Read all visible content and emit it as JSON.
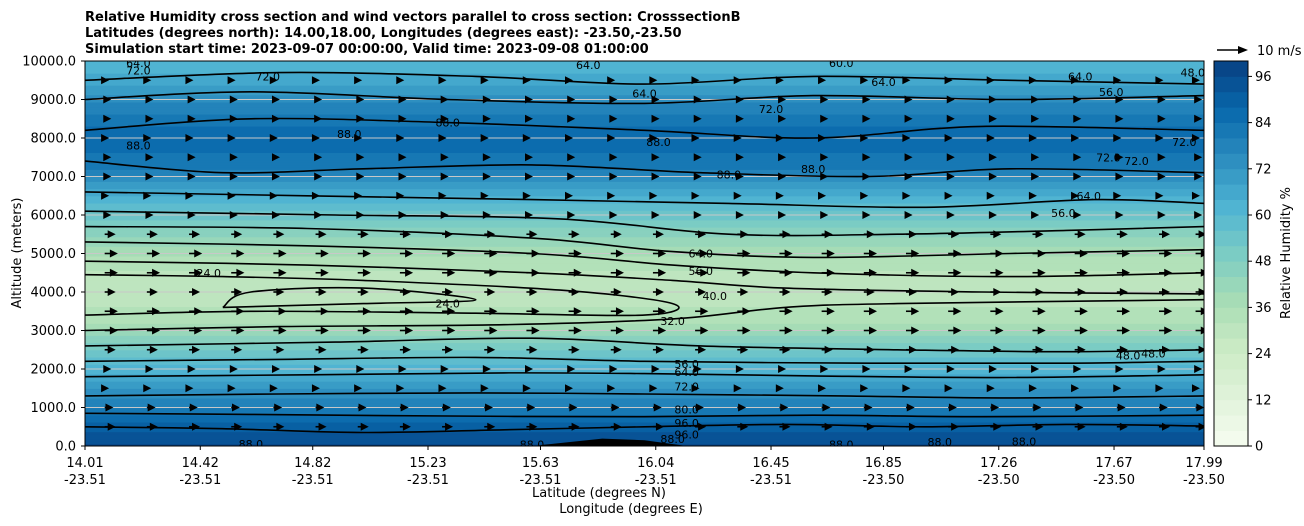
{
  "chart_data": {
    "type": "contour",
    "title_lines": [
      "Relative Humidity cross section and wind vectors parallel to cross section: CrosssectionB",
      "Latitudes (degrees north): 14.00,18.00, Longitudes (degrees east): -23.50,-23.50",
      "Simulation start time: 2023-09-07 00:00:00, Valid time: 2023-09-08 01:00:00"
    ],
    "ylabel": "Altitude (meters)",
    "xlabel_lat": "Latitude (degrees N)",
    "xlabel_lon": "Longitude (degrees E)",
    "x_range": [
      14.01,
      17.99
    ],
    "y_range": [
      0,
      10000
    ],
    "x_ticks": [
      {
        "value": 14.01,
        "lat": "14.01",
        "lon": "-23.51"
      },
      {
        "value": 14.42,
        "lat": "14.42",
        "lon": "-23.51"
      },
      {
        "value": 14.82,
        "lat": "14.82",
        "lon": "-23.51"
      },
      {
        "value": 15.23,
        "lat": "15.23",
        "lon": "-23.51"
      },
      {
        "value": 15.63,
        "lat": "15.63",
        "lon": "-23.51"
      },
      {
        "value": 16.04,
        "lat": "16.04",
        "lon": "-23.51"
      },
      {
        "value": 16.45,
        "lat": "16.45",
        "lon": "-23.51"
      },
      {
        "value": 16.85,
        "lat": "16.85",
        "lon": "-23.50"
      },
      {
        "value": 17.26,
        "lat": "17.26",
        "lon": "-23.50"
      },
      {
        "value": 17.67,
        "lat": "17.67",
        "lon": "-23.50"
      },
      {
        "value": 17.99,
        "lat": "17.99",
        "lon": "-23.50"
      }
    ],
    "y_ticks": [
      {
        "value": 0,
        "label": "0.0"
      },
      {
        "value": 1000,
        "label": "1000.0"
      },
      {
        "value": 2000,
        "label": "2000.0"
      },
      {
        "value": 3000,
        "label": "3000.0"
      },
      {
        "value": 4000,
        "label": "4000.0"
      },
      {
        "value": 5000,
        "label": "5000.0"
      },
      {
        "value": 6000,
        "label": "6000.0"
      },
      {
        "value": 7000,
        "label": "7000.0"
      },
      {
        "value": 8000,
        "label": "8000.0"
      },
      {
        "value": 9000,
        "label": "9000.0"
      },
      {
        "value": 10000,
        "label": "10000.0"
      }
    ],
    "horizontal_grid": true,
    "colorbar": {
      "label": "Relative Humidity %",
      "min": 0,
      "max": 100,
      "ticks": [
        0,
        12,
        24,
        36,
        48,
        60,
        72,
        84,
        96
      ],
      "levels": [
        0,
        4,
        8,
        12,
        16,
        20,
        24,
        28,
        32,
        36,
        40,
        44,
        48,
        52,
        56,
        60,
        64,
        68,
        72,
        76,
        80,
        84,
        88,
        92,
        96,
        100
      ]
    },
    "rh_bands": [
      {
        "alt": 0,
        "rh": 97
      },
      {
        "alt": 400,
        "rh": 92
      },
      {
        "alt": 900,
        "rh": 82
      },
      {
        "alt": 1500,
        "rh": 72
      },
      {
        "alt": 2000,
        "rh": 62
      },
      {
        "alt": 2600,
        "rh": 50
      },
      {
        "alt": 3200,
        "rh": 36
      },
      {
        "alt": 4000,
        "rh": 28
      },
      {
        "alt": 4800,
        "rh": 34
      },
      {
        "alt": 5600,
        "rh": 46
      },
      {
        "alt": 6400,
        "rh": 62
      },
      {
        "alt": 7200,
        "rh": 80
      },
      {
        "alt": 8000,
        "rh": 88
      },
      {
        "alt": 8800,
        "rh": 78
      },
      {
        "alt": 9500,
        "rh": 66
      },
      {
        "alt": 10000,
        "rh": 60
      }
    ],
    "contours": [
      {
        "level": 88,
        "points": [
          [
            14.01,
            500
          ],
          [
            14.5,
            450
          ],
          [
            15.0,
            350
          ],
          [
            15.5,
            420
          ],
          [
            16.0,
            500
          ],
          [
            16.5,
            560
          ],
          [
            17.0,
            500
          ],
          [
            17.5,
            560
          ],
          [
            17.99,
            520
          ]
        ]
      },
      {
        "level": 88,
        "points": [
          [
            14.01,
            850
          ],
          [
            14.6,
            820
          ],
          [
            15.3,
            780
          ],
          [
            16.0,
            760
          ],
          [
            16.6,
            800
          ],
          [
            17.2,
            760
          ],
          [
            17.99,
            800
          ]
        ]
      },
      {
        "level": 72,
        "points": [
          [
            14.01,
            1300
          ],
          [
            14.7,
            1350
          ],
          [
            15.4,
            1380
          ],
          [
            16.0,
            1350
          ],
          [
            16.7,
            1300
          ],
          [
            17.3,
            1250
          ],
          [
            17.99,
            1300
          ]
        ]
      },
      {
        "level": 64,
        "points": [
          [
            14.01,
            1800
          ],
          [
            14.8,
            1850
          ],
          [
            15.5,
            1900
          ],
          [
            16.0,
            1880
          ],
          [
            16.6,
            1820
          ],
          [
            17.3,
            1780
          ],
          [
            17.99,
            1850
          ]
        ]
      },
      {
        "level": 56,
        "points": [
          [
            14.01,
            2200
          ],
          [
            14.7,
            2250
          ],
          [
            15.4,
            2300
          ],
          [
            16.0,
            2200
          ],
          [
            16.8,
            2150
          ],
          [
            17.5,
            2150
          ],
          [
            17.99,
            2200
          ]
        ]
      },
      {
        "level": 48,
        "points": [
          [
            14.01,
            2600
          ],
          [
            14.9,
            2700
          ],
          [
            15.6,
            2800
          ],
          [
            16.2,
            2600
          ],
          [
            16.9,
            2500
          ],
          [
            17.5,
            2450
          ],
          [
            17.99,
            2500
          ]
        ]
      },
      {
        "level": 40,
        "points": [
          [
            14.01,
            3000
          ],
          [
            14.7,
            3100
          ],
          [
            15.5,
            3150
          ],
          [
            16.1,
            3300
          ],
          [
            16.5,
            3600
          ],
          [
            16.9,
            3700
          ],
          [
            17.99,
            3800
          ]
        ]
      },
      {
        "level": 32,
        "points": [
          [
            14.01,
            3400
          ],
          [
            14.6,
            3500
          ],
          [
            15.4,
            3450
          ],
          [
            16.0,
            3400
          ],
          [
            16.1,
            3700
          ],
          [
            15.7,
            4050
          ],
          [
            15.0,
            4300
          ],
          [
            14.5,
            4400
          ],
          [
            14.01,
            4450
          ]
        ]
      },
      {
        "level": 24,
        "points": [
          [
            14.5,
            3600
          ],
          [
            15.0,
            3700
          ],
          [
            15.4,
            3800
          ],
          [
            15.0,
            4100
          ],
          [
            14.6,
            4000
          ],
          [
            14.5,
            3600
          ]
        ]
      },
      {
        "level": 40,
        "points": [
          [
            14.01,
            4800
          ],
          [
            14.8,
            4700
          ],
          [
            15.6,
            4500
          ],
          [
            16.1,
            4300
          ],
          [
            16.5,
            4100
          ],
          [
            17.2,
            4000
          ],
          [
            17.99,
            3950
          ]
        ]
      },
      {
        "level": 56,
        "points": [
          [
            14.01,
            5300
          ],
          [
            14.8,
            5200
          ],
          [
            15.6,
            5000
          ],
          [
            16.1,
            4700
          ],
          [
            16.6,
            4500
          ],
          [
            17.3,
            4400
          ],
          [
            17.99,
            4500
          ]
        ]
      },
      {
        "level": 64,
        "points": [
          [
            14.01,
            5700
          ],
          [
            14.8,
            5650
          ],
          [
            15.6,
            5400
          ],
          [
            16.1,
            5050
          ],
          [
            16.6,
            4900
          ],
          [
            17.3,
            5000
          ],
          [
            17.99,
            5100
          ]
        ]
      },
      {
        "level": 72,
        "points": [
          [
            14.01,
            6100
          ],
          [
            14.9,
            6000
          ],
          [
            15.7,
            5900
          ],
          [
            16.3,
            5500
          ],
          [
            16.9,
            5500
          ],
          [
            17.5,
            5600
          ],
          [
            17.99,
            5700
          ]
        ]
      },
      {
        "level": 80,
        "points": [
          [
            14.01,
            6600
          ],
          [
            14.8,
            6500
          ],
          [
            15.6,
            6400
          ],
          [
            16.3,
            6300
          ],
          [
            17.0,
            6200
          ],
          [
            17.6,
            6400
          ],
          [
            17.99,
            6300
          ]
        ]
      },
      {
        "level": 88,
        "points": [
          [
            14.01,
            7400
          ],
          [
            14.5,
            7100
          ],
          [
            15.0,
            7200
          ],
          [
            15.6,
            7300
          ],
          [
            16.2,
            7100
          ],
          [
            16.8,
            7000
          ],
          [
            17.3,
            7200
          ],
          [
            17.99,
            7100
          ]
        ]
      },
      {
        "level": 88,
        "points": [
          [
            14.01,
            8200
          ],
          [
            14.6,
            8500
          ],
          [
            15.3,
            8400
          ],
          [
            16.0,
            8200
          ],
          [
            16.6,
            8000
          ],
          [
            17.2,
            8300
          ],
          [
            17.99,
            8200
          ]
        ]
      },
      {
        "level": 72,
        "points": [
          [
            14.01,
            9000
          ],
          [
            14.6,
            9200
          ],
          [
            15.3,
            9000
          ],
          [
            16.0,
            8900
          ],
          [
            16.6,
            9100
          ],
          [
            17.3,
            9000
          ],
          [
            17.99,
            9100
          ]
        ]
      },
      {
        "level": 64,
        "points": [
          [
            14.01,
            9500
          ],
          [
            14.7,
            9700
          ],
          [
            15.4,
            9600
          ],
          [
            16.0,
            9400
          ],
          [
            16.6,
            9600
          ],
          [
            17.3,
            9500
          ],
          [
            17.99,
            9400
          ]
        ]
      }
    ],
    "contour_labels": [
      {
        "text": "88.0",
        "x": 14.6,
        "y": 50
      },
      {
        "text": "88.0",
        "x": 15.6,
        "y": 40
      },
      {
        "text": "88.0",
        "x": 16.1,
        "y": 180
      },
      {
        "text": "88.0",
        "x": 16.7,
        "y": 40
      },
      {
        "text": "88.0",
        "x": 17.05,
        "y": 100
      },
      {
        "text": "88.0",
        "x": 17.35,
        "y": 120
      },
      {
        "text": "96.0",
        "x": 16.15,
        "y": 300
      },
      {
        "text": "96.0",
        "x": 16.15,
        "y": 600
      },
      {
        "text": "80.0",
        "x": 16.15,
        "y": 950
      },
      {
        "text": "72.0",
        "x": 16.15,
        "y": 1550
      },
      {
        "text": "64.0",
        "x": 16.15,
        "y": 1920
      },
      {
        "text": "56.0",
        "x": 16.15,
        "y": 2130
      },
      {
        "text": "48.0",
        "x": 17.72,
        "y": 2350
      },
      {
        "text": "48.0",
        "x": 17.81,
        "y": 2400
      },
      {
        "text": "32.0",
        "x": 16.1,
        "y": 3250
      },
      {
        "text": "40.0",
        "x": 16.25,
        "y": 3900
      },
      {
        "text": "24.0",
        "x": 15.3,
        "y": 3700
      },
      {
        "text": "24.0",
        "x": 14.45,
        "y": 4500
      },
      {
        "text": "56.0",
        "x": 16.2,
        "y": 4550
      },
      {
        "text": "64.0",
        "x": 16.2,
        "y": 5000
      },
      {
        "text": "56.0",
        "x": 17.49,
        "y": 6050
      },
      {
        "text": "64.0",
        "x": 17.58,
        "y": 6500
      },
      {
        "text": "72.0",
        "x": 17.75,
        "y": 7400
      },
      {
        "text": "72.0",
        "x": 17.65,
        "y": 7500
      },
      {
        "text": "88.0",
        "x": 16.3,
        "y": 7050
      },
      {
        "text": "88.0",
        "x": 16.05,
        "y": 7900
      },
      {
        "text": "88.0",
        "x": 16.6,
        "y": 7200
      },
      {
        "text": "88.0",
        "x": 14.2,
        "y": 7800
      },
      {
        "text": "88.0",
        "x": 14.95,
        "y": 8100
      },
      {
        "text": "88.0",
        "x": 15.3,
        "y": 8400
      },
      {
        "text": "72.0",
        "x": 16.45,
        "y": 8750
      },
      {
        "text": "72.0",
        "x": 17.92,
        "y": 7900
      },
      {
        "text": "72.0",
        "x": 14.66,
        "y": 9600
      },
      {
        "text": "72.0",
        "x": 14.2,
        "y": 9750
      },
      {
        "text": "64.0",
        "x": 16.0,
        "y": 9150
      },
      {
        "text": "64.0",
        "x": 16.85,
        "y": 9450
      },
      {
        "text": "64.0",
        "x": 17.55,
        "y": 9600
      },
      {
        "text": "56.0",
        "x": 17.66,
        "y": 9200
      },
      {
        "text": "48.0",
        "x": 17.95,
        "y": 9700
      },
      {
        "text": "64.0",
        "x": 15.8,
        "y": 9900
      },
      {
        "text": "64.0",
        "x": 14.2,
        "y": 9950
      },
      {
        "text": "60.0",
        "x": 16.7,
        "y": 9950
      }
    ],
    "wind_vectors": {
      "reference_label": "10 m/s",
      "reference_speed": 10,
      "x_samples": [
        14.08,
        14.23,
        14.38,
        14.53,
        14.68,
        14.83,
        14.98,
        15.13,
        15.28,
        15.43,
        15.58,
        15.73,
        15.88,
        16.03,
        16.18,
        16.33,
        16.48,
        16.63,
        16.78,
        16.93,
        17.08,
        17.23,
        17.38,
        17.53,
        17.68,
        17.83,
        17.96
      ],
      "levels": [
        {
          "alt": 500,
          "u": 5
        },
        {
          "alt": 1000,
          "u": 4
        },
        {
          "alt": 1500,
          "u": 2
        },
        {
          "alt": 2000,
          "u": 3
        },
        {
          "alt": 2500,
          "u": 5
        },
        {
          "alt": 3000,
          "u": 6
        },
        {
          "alt": 3500,
          "u": 6
        },
        {
          "alt": 4000,
          "u": 5
        },
        {
          "alt": 4500,
          "u": 6
        },
        {
          "alt": 5000,
          "u": 6
        },
        {
          "alt": 5500,
          "u": 5
        },
        {
          "alt": 6000,
          "u": 3
        },
        {
          "alt": 6500,
          "u": 2
        },
        {
          "alt": 7000,
          "u": 3
        },
        {
          "alt": 7500,
          "u": 3
        },
        {
          "alt": 8000,
          "u": 2
        },
        {
          "alt": 8500,
          "u": 3
        },
        {
          "alt": 9000,
          "u": 3
        },
        {
          "alt": 9500,
          "u": 2
        }
      ]
    },
    "terrain": {
      "x": [
        15.6,
        15.85,
        16.0,
        16.15
      ],
      "y": [
        0,
        190,
        150,
        0
      ]
    }
  }
}
